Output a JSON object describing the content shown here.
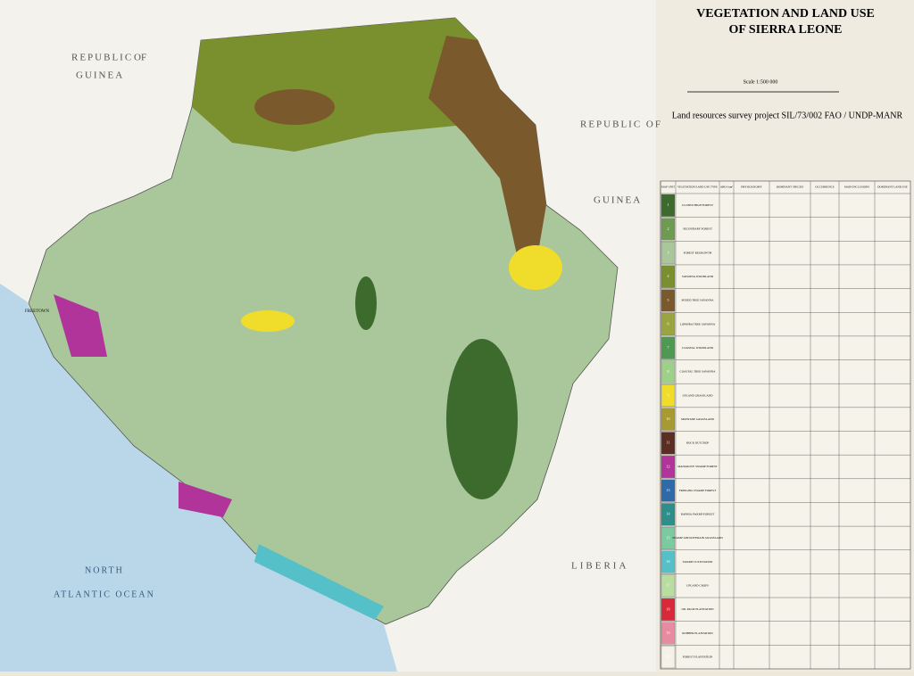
{
  "header": {
    "title_line1": "VEGETATION AND LAND USE",
    "title_line2": "OF SIERRA LEONE",
    "scale": "Scale 1:500 000",
    "project": "Land resources survey project SIL/73/002 FAO / UNDP-MANR"
  },
  "map_labels": {
    "guinea_north_1": "REPUBLIC",
    "guinea_north_2": "OF",
    "guinea_north_3": "GUINEA",
    "guinea_east_1": "REPUBLIC OF",
    "guinea_east_2": "GUINEA",
    "liberia": "LIBERIA",
    "ocean_1": "NORTH",
    "ocean_2": "ATLANTIC OCEAN",
    "freetown": "FREETOWN"
  },
  "legend": {
    "columns": [
      "MAP UNIT",
      "VEGETATION/LAND USE TYPE",
      "AREA km²",
      "PHYSIOGNOMY",
      "DOMINANT SPECIES",
      "OCCURRENCE",
      "MAIN INCLUSIONS",
      "DOMINANT LAND USE"
    ],
    "rows": [
      {
        "unit": "1",
        "type": "CLOSED HIGH FOREST",
        "color": "#3d6b2e"
      },
      {
        "unit": "2",
        "type": "SECONDARY FOREST",
        "color": "#6f9a52"
      },
      {
        "unit": "3",
        "type": "FOREST REGROWTH",
        "color": "#a9c79a"
      },
      {
        "unit": "4",
        "type": "SAVANNA WOODLAND",
        "color": "#7a8f2e"
      },
      {
        "unit": "5",
        "type": "MIXED TREE SAVANNA",
        "color": "#7a5a2c"
      },
      {
        "unit": "6",
        "type": "LOPHIRA TREE SAVANNA",
        "color": "#9aa540"
      },
      {
        "unit": "7",
        "type": "COASTAL WOODLAND",
        "color": "#4f9a52"
      },
      {
        "unit": "8",
        "type": "COASTAL TREE SAVANNA",
        "color": "#9fd08a"
      },
      {
        "unit": "9",
        "type": "UPLAND GRASSLAND",
        "color": "#f0dc2a"
      },
      {
        "unit": "10",
        "type": "MONTANE GRASSLAND",
        "color": "#a89a30"
      },
      {
        "unit": "11",
        "type": "ROCK OUTCROP",
        "color": "#5a2e22"
      },
      {
        "unit": "12",
        "type": "MANGROVE SWAMP FOREST",
        "color": "#b0349a"
      },
      {
        "unit": "13",
        "type": "FRINGING SWAMP FOREST",
        "color": "#2f6aa8"
      },
      {
        "unit": "14",
        "type": "RAPHIA SWAMP FOREST",
        "color": "#2e8f8a"
      },
      {
        "unit": "15",
        "type": "SWAMP AND RIVERAIN GRASSLAND",
        "color": "#7ccaa0"
      },
      {
        "unit": "16",
        "type": "SWAMP CULTIVATION",
        "color": "#56c0c8"
      },
      {
        "unit": "17",
        "type": "UPLAND CROPS",
        "color": "#b9dca0"
      },
      {
        "unit": "18",
        "type": "OIL PALM PLANTATION",
        "color": "#d8283a"
      },
      {
        "unit": "19",
        "type": "RUBBER PLANTATION",
        "color": "#e88aa0"
      },
      {
        "unit": "20",
        "type": "FOREST PLANTATION",
        "color": "#f4f1e6"
      }
    ]
  }
}
